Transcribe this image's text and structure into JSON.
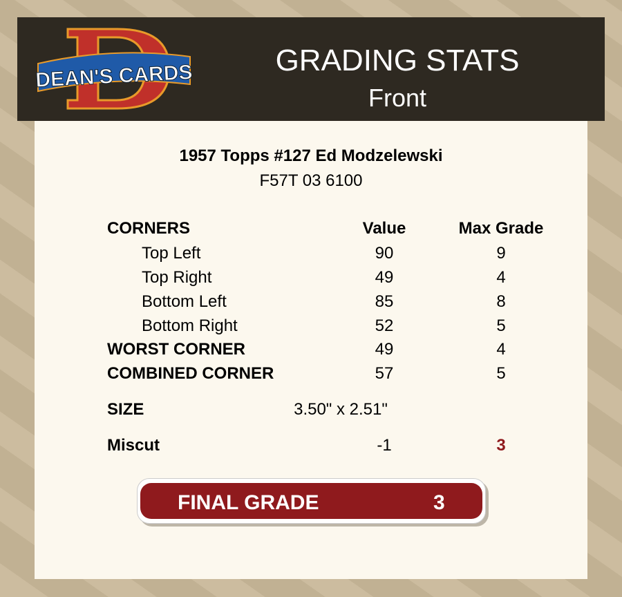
{
  "logo": {
    "text": "DEAN'S CARDS",
    "letter": "D"
  },
  "header": {
    "title": "GRADING STATS",
    "subtitle": "Front"
  },
  "card": {
    "name": "1957 Topps #127 Ed Modzelewski",
    "cert": "F57T 03 6100"
  },
  "table": {
    "section": "CORNERS",
    "value_header": "Value",
    "max_header": "Max Grade",
    "corners": [
      {
        "label": "Top Left",
        "value": "90",
        "max": "9"
      },
      {
        "label": "Top Right",
        "value": "49",
        "max": "4"
      },
      {
        "label": "Bottom Left",
        "value": "85",
        "max": "8"
      },
      {
        "label": "Bottom Right",
        "value": "52",
        "max": "5"
      }
    ],
    "worst": {
      "label": "WORST CORNER",
      "value": "49",
      "max": "4"
    },
    "combined": {
      "label": "COMBINED CORNER",
      "value": "57",
      "max": "5"
    },
    "size": {
      "label": "SIZE",
      "value": "3.50\" x 2.51\""
    },
    "miscut": {
      "label": "Miscut",
      "value": "-1",
      "max": "3",
      "max_color": "#8f1a1d"
    }
  },
  "final": {
    "label": "FINAL GRADE",
    "value": "3",
    "color": "#8f1a1d"
  }
}
